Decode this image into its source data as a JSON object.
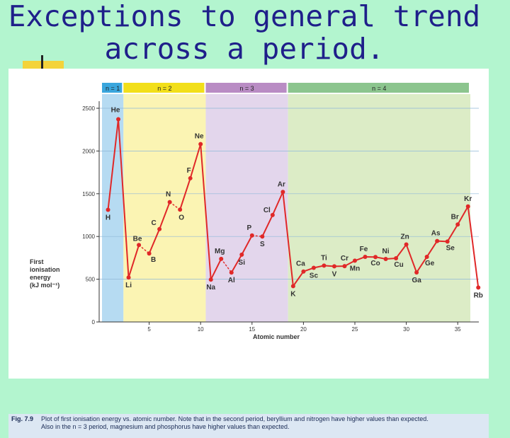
{
  "slide": {
    "title_line1": "Exceptions to general trend",
    "title_line2": "across a period."
  },
  "figure": {
    "number": "Fig. 7.9",
    "caption_line1": "Plot of first ionisation energy vs. atomic number. Note that in the second period, beryllium and nitrogen have higher values than expected.",
    "caption_line2": "Also in the n = 3 period, magnesium and phosphorus have higher values than expected."
  },
  "colors": {
    "n1": "#b6dbf2",
    "n2": "#fbf4b3",
    "n3": "#e3d6ec",
    "n4": "#dcecc6",
    "n1_head": "#3aa6dd",
    "n2_head": "#f2df1a",
    "n3_head": "#b98cc4",
    "n4_head": "#8cc58e",
    "line": "#e02828",
    "point": "#e02828"
  },
  "chart_data": {
    "type": "line",
    "xlabel": "Atomic number",
    "ylabel": "First\nionisation\nenergy\n(kJ mol⁻¹)",
    "xlim": [
      0,
      37
    ],
    "ylim": [
      0,
      2500
    ],
    "x_ticks": [
      5,
      10,
      15,
      20,
      25,
      30,
      35
    ],
    "y_ticks": [
      0,
      500,
      1000,
      1500,
      2000,
      2500
    ],
    "periods": [
      {
        "label": "n = 1",
        "from": 1,
        "to": 2
      },
      {
        "label": "n = 2",
        "from": 3,
        "to": 10
      },
      {
        "label": "n = 3",
        "from": 11,
        "to": 18
      },
      {
        "label": "n = 4",
        "from": 19,
        "to": 36
      }
    ],
    "series": [
      {
        "points": [
          {
            "z": 1,
            "symbol": "H",
            "value": 1312
          },
          {
            "z": 2,
            "symbol": "He",
            "value": 2372
          },
          {
            "z": 3,
            "symbol": "Li",
            "value": 520
          },
          {
            "z": 4,
            "symbol": "Be",
            "value": 900
          },
          {
            "z": 5,
            "symbol": "B",
            "value": 801
          },
          {
            "z": 6,
            "symbol": "C",
            "value": 1086
          },
          {
            "z": 7,
            "symbol": "N",
            "value": 1402
          },
          {
            "z": 8,
            "symbol": "O",
            "value": 1314
          },
          {
            "z": 9,
            "symbol": "F",
            "value": 1681
          },
          {
            "z": 10,
            "symbol": "Ne",
            "value": 2081
          },
          {
            "z": 11,
            "symbol": "Na",
            "value": 496
          },
          {
            "z": 12,
            "symbol": "Mg",
            "value": 738
          },
          {
            "z": 13,
            "symbol": "Al",
            "value": 578
          },
          {
            "z": 14,
            "symbol": "Si",
            "value": 787
          },
          {
            "z": 15,
            "symbol": "P",
            "value": 1012
          },
          {
            "z": 16,
            "symbol": "S",
            "value": 1000
          },
          {
            "z": 17,
            "symbol": "Cl",
            "value": 1251
          },
          {
            "z": 18,
            "symbol": "Ar",
            "value": 1521
          },
          {
            "z": 19,
            "symbol": "K",
            "value": 419
          },
          {
            "z": 20,
            "symbol": "Ca",
            "value": 590
          },
          {
            "z": 21,
            "symbol": "Sc",
            "value": 633
          },
          {
            "z": 22,
            "symbol": "Ti",
            "value": 659
          },
          {
            "z": 23,
            "symbol": "V",
            "value": 651
          },
          {
            "z": 24,
            "symbol": "Cr",
            "value": 653
          },
          {
            "z": 25,
            "symbol": "Mn",
            "value": 717
          },
          {
            "z": 26,
            "symbol": "Fe",
            "value": 762
          },
          {
            "z": 27,
            "symbol": "Co",
            "value": 760
          },
          {
            "z": 28,
            "symbol": "Ni",
            "value": 737
          },
          {
            "z": 29,
            "symbol": "Cu",
            "value": 745
          },
          {
            "z": 30,
            "symbol": "Zn",
            "value": 906
          },
          {
            "z": 31,
            "symbol": "Ga",
            "value": 579
          },
          {
            "z": 32,
            "symbol": "Ge",
            "value": 762
          },
          {
            "z": 33,
            "symbol": "As",
            "value": 947
          },
          {
            "z": 34,
            "symbol": "Se",
            "value": 941
          },
          {
            "z": 35,
            "symbol": "Br",
            "value": 1140
          },
          {
            "z": 36,
            "symbol": "Kr",
            "value": 1351
          },
          {
            "z": 37,
            "symbol": "Rb",
            "value": 403
          }
        ]
      }
    ],
    "grid": true
  }
}
